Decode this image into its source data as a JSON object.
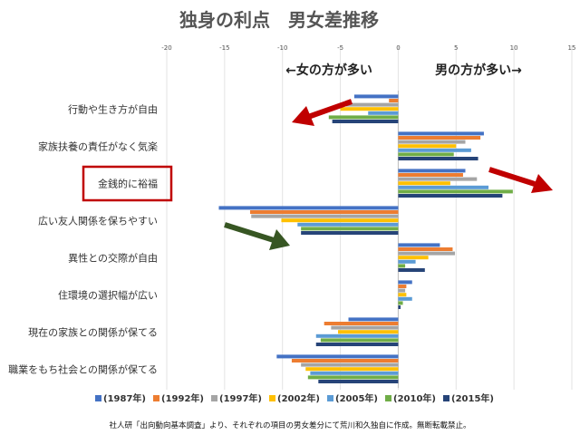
{
  "chart_data": {
    "type": "bar",
    "orientation": "horizontal",
    "title": "独身の利点　男女差推移",
    "xlim": [
      -20,
      15
    ],
    "x_ticks": [
      "-20",
      "-15",
      "-10",
      "-5",
      "0",
      "5",
      "10",
      "15"
    ],
    "direction_labels": {
      "left": "←女の方が多い",
      "right": "男の方が多い→"
    },
    "categories": [
      "行動や生き方が自由",
      "家族扶養の責任がなく気楽",
      "金銭的に裕福",
      "広い友人関係を保ちやすい",
      "異性との交際が自由",
      "住環境の選択幅が広い",
      "現在の家族との関係が保てる",
      "職業をもち社会との関係が保てる"
    ],
    "highlighted_category": "金銭的に裕福",
    "series": [
      {
        "name": "(1987年)",
        "color": "#4472C4",
        "values": [
          -3.8,
          7.4,
          5.8,
          -15.5,
          3.6,
          1.2,
          -4.3,
          -10.5
        ]
      },
      {
        "name": "(1992年)",
        "color": "#ED7D31",
        "values": [
          -0.8,
          7.1,
          5.6,
          -12.8,
          4.7,
          0.7,
          -6.4,
          -9.2
        ]
      },
      {
        "name": "(1997年)",
        "color": "#A5A5A5",
        "values": [
          -4.5,
          5.8,
          6.8,
          -12.7,
          4.9,
          0.6,
          -5.8,
          -8.4
        ]
      },
      {
        "name": "(2002年)",
        "color": "#FFC000",
        "values": [
          -5.0,
          5.0,
          4.5,
          -10.1,
          2.6,
          0.7,
          -5.2,
          -8.0
        ]
      },
      {
        "name": "(2005年)",
        "color": "#5B9BD5",
        "values": [
          -2.6,
          6.3,
          7.8,
          -8.7,
          1.5,
          1.2,
          -7.1,
          -7.6
        ]
      },
      {
        "name": "(2010年)",
        "color": "#70AD47",
        "values": [
          -6.0,
          4.8,
          9.9,
          -8.4,
          0.6,
          0.4,
          -6.7,
          -7.8
        ]
      },
      {
        "name": "(2015年)",
        "color": "#264478",
        "values": [
          -5.7,
          6.9,
          9.0,
          -8.4,
          2.3,
          0.2,
          -7.1,
          -6.9
        ]
      }
    ],
    "footnote": "社人研「出向動向基本調査」より、それぞれの項目の男女差分にて荒川和久独自に作成。無断転載禁止。"
  }
}
